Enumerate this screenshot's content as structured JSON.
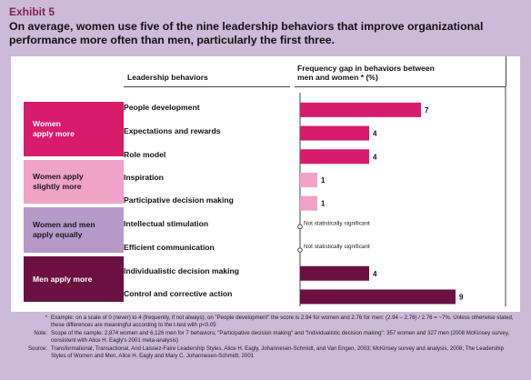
{
  "exhibit_label": "Exhibit 5",
  "headline_line1": "On average, women use five of the nine leadership behaviors that improve organizational",
  "headline_line2": "performance more often than men, particularly the first three.",
  "column_left_header": "Leadership behaviors",
  "column_right_header_line1": "Frequency gap in behaviors between",
  "column_right_header_line2": "men and women * (%)",
  "groups": [
    {
      "line1": "Women",
      "line2": "apply more",
      "color": "#d81b6a",
      "text_color": "#ffffff"
    },
    {
      "line1": "Women apply",
      "line2": "slightly more",
      "color": "#f0a3c8",
      "text_color": "#1a1a1a"
    },
    {
      "line1": "Women and men",
      "line2": "apply equally",
      "color": "#b59ac9",
      "text_color": "#1a1a1a"
    },
    {
      "line1": "Men apply more",
      "line2": "",
      "color": "#6b1040",
      "text_color": "#ffffff"
    }
  ],
  "chart_data": {
    "type": "bar",
    "orientation": "horizontal",
    "categories": [
      "People development",
      "Expectations and rewards",
      "Role model",
      "Inspiration",
      "Participative decision making",
      "Intellectual stimulation",
      "Efficient communication",
      "Individualistic decision making",
      "Control and corrective action"
    ],
    "values": [
      7,
      4,
      4,
      1,
      1,
      0,
      0,
      4,
      9
    ],
    "value_labels": [
      "7",
      "4",
      "4",
      "1",
      "1",
      "",
      "",
      "4",
      "9"
    ],
    "annotations": [
      "",
      "",
      "",
      "",
      "",
      "Not statistically significant",
      "Not statistically significant",
      "",
      ""
    ],
    "bar_colors": [
      "#d81b6a",
      "#d81b6a",
      "#d81b6a",
      "#f0a3c8",
      "#f0a3c8",
      "#b59ac9",
      "#b59ac9",
      "#6b1040",
      "#6b1040"
    ],
    "xlim": [
      0,
      9
    ],
    "title": "Frequency gap in behaviors between men and women * (%)",
    "xlabel": "",
    "ylabel": "Leadership behaviors",
    "grid": false
  },
  "notes": [
    {
      "key": "*",
      "text": "Example: on a scale of 0 (never) to 4 (frequently, if not always), on \"People development\" the score is 2.94 for women and 2.76 for men: (2.94 – 2.76) / 2.76 = ~7%. Unless otherwise stated, these differences are meaningful according to the t-test with p<0.05"
    },
    {
      "key": "Note:",
      "text": "Scope of the sample: 2,874 women and 6,126 men for 7 behaviors; \"Participative decision making\" and \"Individualistic decision making\": 357 women and 327 men (2008 McKinsey survey, consistent with Alice H. Eagly's 2001 meta-analysis)"
    },
    {
      "key": "Source:",
      "text": "Transformational, Transactional, And Laissez-Faire Leadership Styles, Alice H. Eagly, Johannesen-Schmidt, and Van Engen, 2003; McKinsey survey and analysis, 2008; The Leadership Styles of Women and Men, Alice H. Eagly and Mary C. Johannesen-Schmidt, 2001"
    }
  ]
}
